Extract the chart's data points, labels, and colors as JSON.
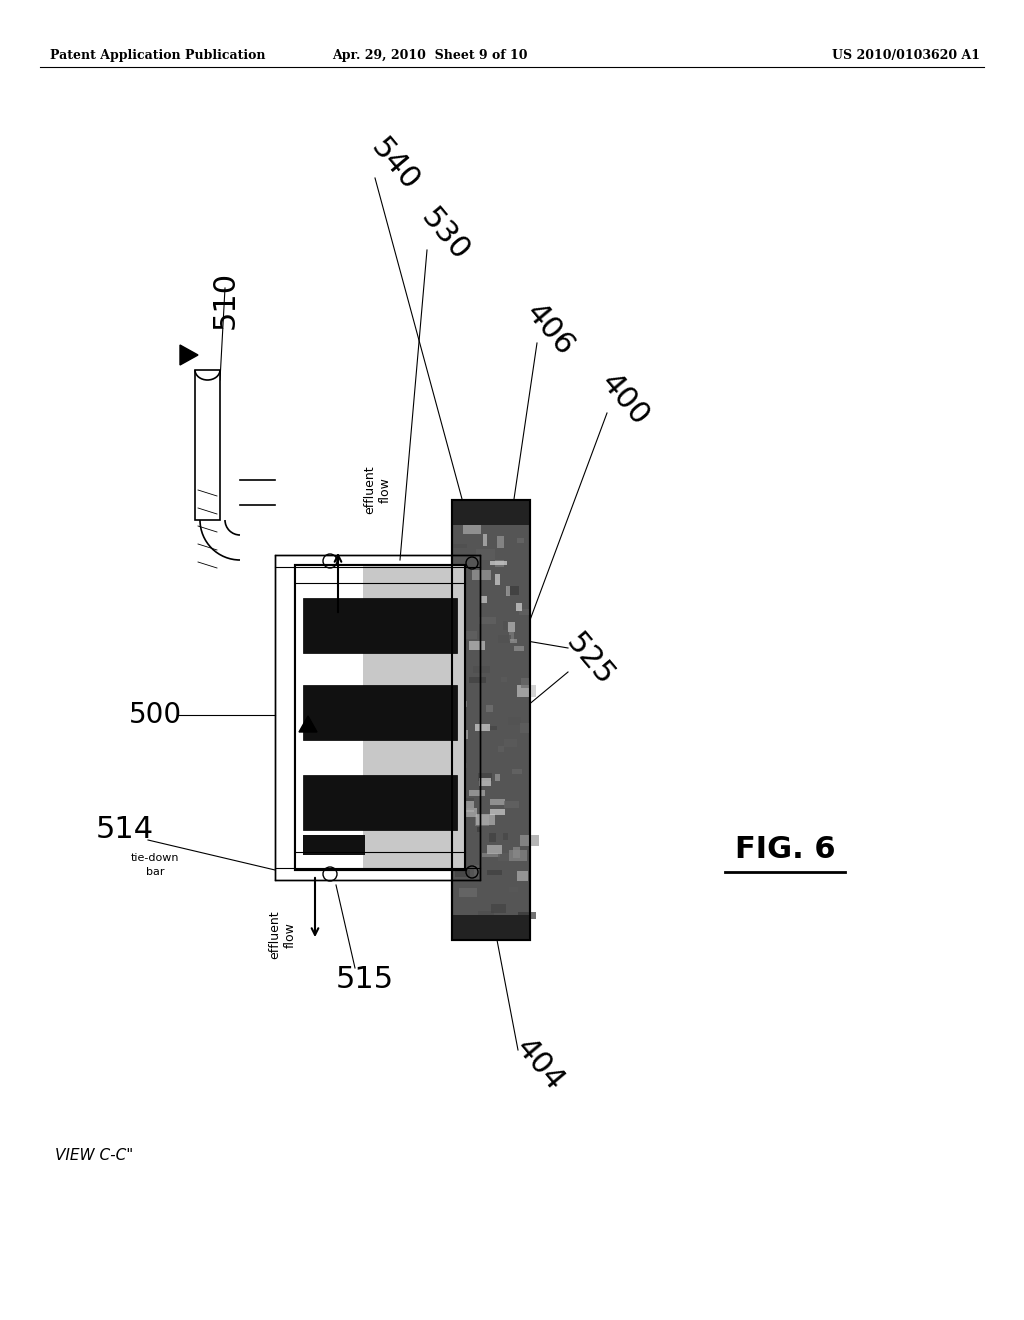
{
  "background_color": "#ffffff",
  "header_left": "Patent Application Publication",
  "header_center": "Apr. 29, 2010  Sheet 9 of 10",
  "header_right": "US 2010/0103620 A1",
  "figure_label": "FIG. 6",
  "view_label": "VIEW C-C\"",
  "font_sizes": {
    "header": 9,
    "label_large": 20,
    "annotation": 9,
    "fig_label": 18
  }
}
